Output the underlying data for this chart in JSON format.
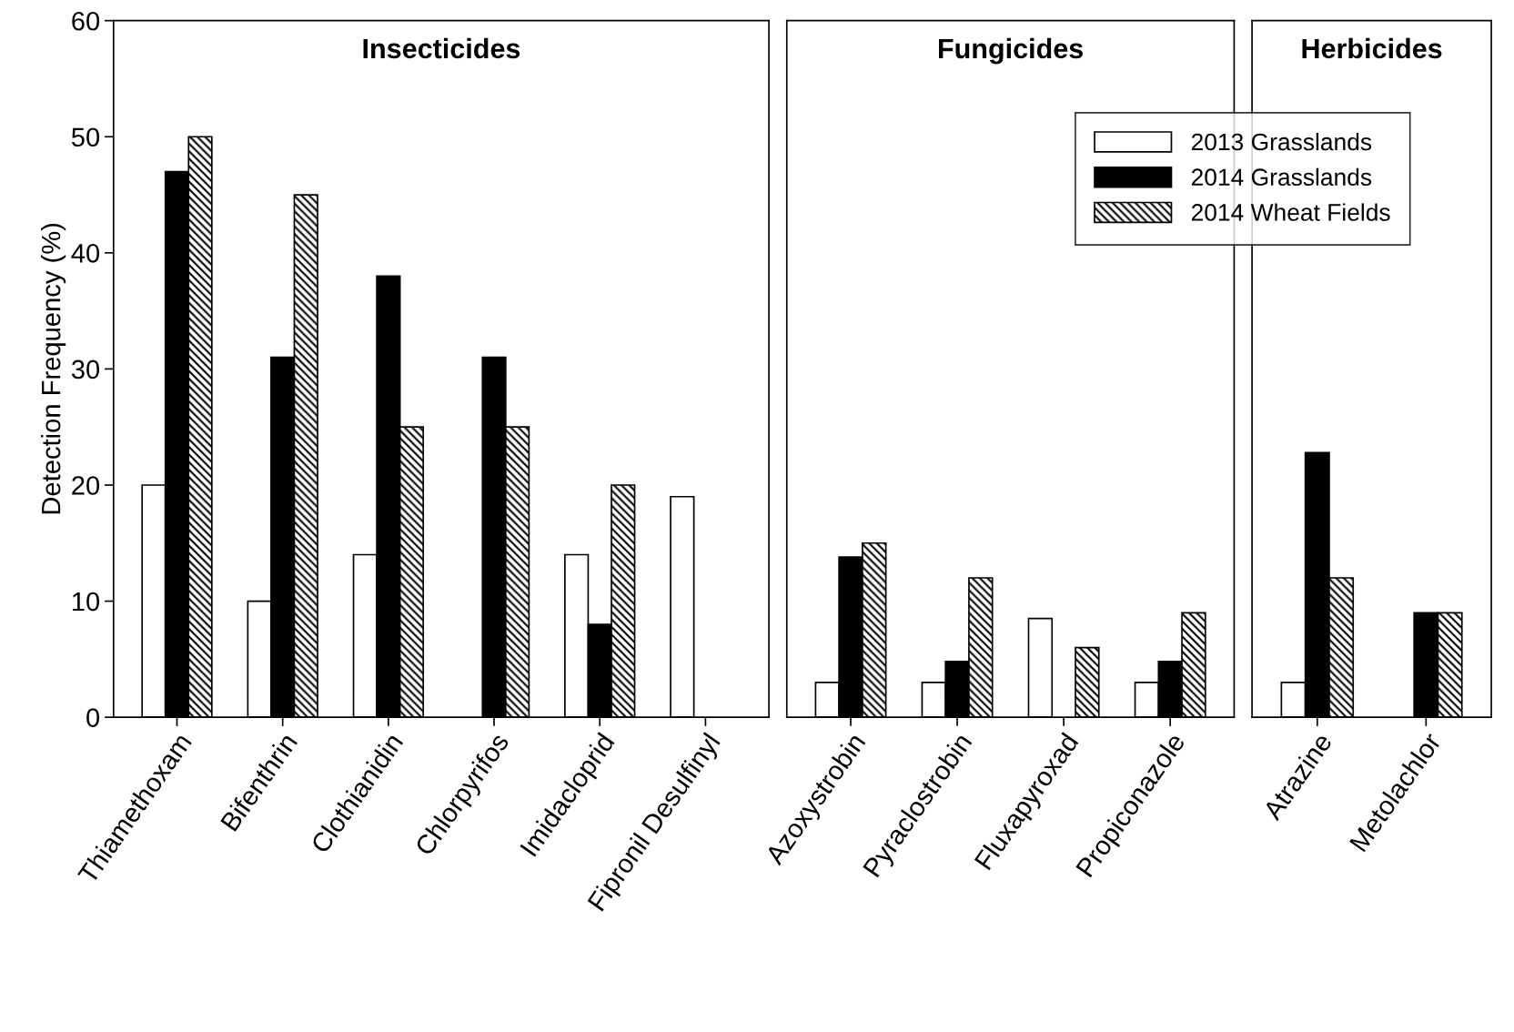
{
  "chart_data": [
    {
      "type": "bar",
      "title": "Insecticides",
      "ylabel": "Detection Frequency (%)",
      "categories": [
        "Thiamethoxam",
        "Bifenthrin",
        "Clothianidin",
        "Chlorpyrifos",
        "Imidacloprid",
        "Fipronil Desulfinyl"
      ],
      "series": [
        {
          "color": "#ffffff",
          "values": [
            20,
            10,
            14,
            null,
            14,
            19
          ]
        },
        {
          "color": "#000000",
          "values": [
            47,
            31,
            38,
            31,
            8,
            null
          ]
        },
        {
          "color": "#000000",
          "values": [
            50,
            45,
            25,
            25,
            20,
            null
          ]
        }
      ],
      "ylim": [
        0,
        60
      ],
      "yticks": [
        0,
        10,
        20,
        30,
        40,
        50,
        60
      ],
      "grid": false
    },
    {
      "type": "bar",
      "title": "Fungicides",
      "categories": [
        "Azoxystrobin",
        "Pyraclostrobin",
        "Fluxapyroxad",
        "Propiconazole"
      ],
      "series": [
        {
          "name": "2013 Grasslands",
          "color": "#ffffff",
          "values": [
            3,
            3,
            8.5,
            3
          ]
        },
        {
          "name": "2014 Grasslands",
          "color": "#000000",
          "values": [
            13.8,
            4.8,
            null,
            4.8
          ]
        },
        {
          "name": "2014 Wheat Fields",
          "color": "#000000",
          "values": [
            15,
            12,
            6,
            9
          ]
        }
      ],
      "ylim": [
        0,
        60
      ],
      "tick_labels": "x",
      "legend": "top right",
      "grid": false
    },
    {
      "type": "bar",
      "title": "Herbicides",
      "categories": [
        "Atrazine",
        "Metolachlor"
      ],
      "series": [
        {
          "color": "#ffffff",
          "values": [
            3,
            null
          ]
        },
        {
          "color": "#000000",
          "values": [
            22.8,
            9
          ]
        },
        {
          "color": "#000000",
          "values": [
            12,
            9
          ]
        }
      ],
      "ylim": [
        0,
        60
      ],
      "tick_labels": "x",
      "grid": false
    }
  ]
}
